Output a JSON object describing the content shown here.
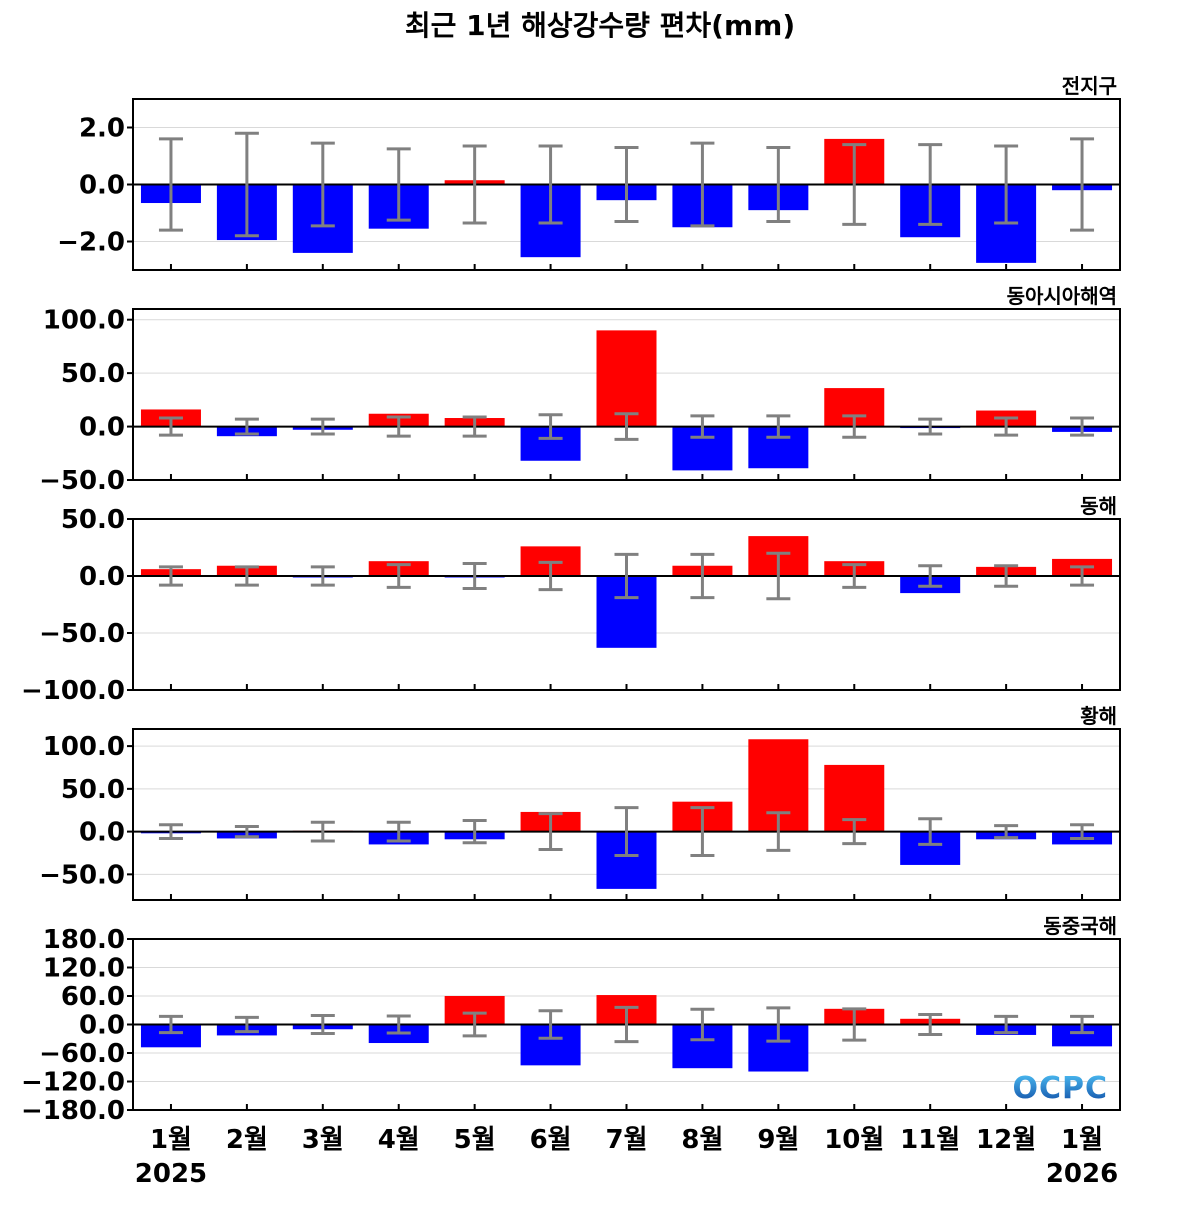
{
  "title": "최근 1년 해상강수량 편차(mm)",
  "colors": {
    "positive": "#ff0000",
    "negative": "#0000ff",
    "errorbar": "#808080",
    "grid": "#d9d9d9",
    "axis": "#000000"
  },
  "logo_text": "OCPC",
  "chart_data": [
    {
      "type": "bar",
      "panel_label": "전지구",
      "categories": [
        "1월",
        "2월",
        "3월",
        "4월",
        "5월",
        "6월",
        "7월",
        "8월",
        "9월",
        "10월",
        "11월",
        "12월",
        "1월"
      ],
      "values": [
        -0.65,
        -1.95,
        -2.4,
        -1.55,
        0.15,
        -2.55,
        -0.55,
        -1.5,
        -0.9,
        1.6,
        -1.85,
        -2.75,
        -0.2
      ],
      "error_half": [
        1.6,
        1.8,
        1.45,
        1.25,
        1.35,
        1.35,
        1.3,
        1.45,
        1.3,
        1.4,
        1.4,
        1.35,
        1.6
      ],
      "ylim": [
        -3.0,
        3.0
      ],
      "yticks": [
        -2.0,
        0.0,
        2.0
      ],
      "ytick_labels": [
        "−2.0",
        "0.0",
        "2.0"
      ],
      "grid": true
    },
    {
      "type": "bar",
      "panel_label": "동아시아해역",
      "categories": [
        "1월",
        "2월",
        "3월",
        "4월",
        "5월",
        "6월",
        "7월",
        "8월",
        "9월",
        "10월",
        "11월",
        "12월",
        "1월"
      ],
      "values": [
        16,
        -9,
        -3,
        12,
        8,
        -32,
        90,
        -41,
        -39,
        36,
        -1,
        15,
        -5
      ],
      "error_half": [
        8,
        7,
        7,
        9,
        9,
        11,
        12,
        10,
        10,
        10,
        7,
        8,
        8
      ],
      "ylim": [
        -50,
        110
      ],
      "yticks": [
        -50,
        0,
        50,
        100
      ],
      "ytick_labels": [
        "−50.0",
        "0.0",
        "50.0",
        "100.0"
      ],
      "grid": true
    },
    {
      "type": "bar",
      "panel_label": "동해",
      "categories": [
        "1월",
        "2월",
        "3월",
        "4월",
        "5월",
        "6월",
        "7월",
        "8월",
        "9월",
        "10월",
        "11월",
        "12월",
        "1월"
      ],
      "values": [
        6,
        9,
        -1,
        13,
        -1,
        26,
        -63,
        9,
        35,
        13,
        -15,
        8,
        15
      ],
      "error_half": [
        8,
        8,
        8,
        10,
        11,
        12,
        19,
        19,
        20,
        10,
        9,
        9,
        8
      ],
      "ylim": [
        -100,
        50
      ],
      "yticks": [
        -100,
        -50,
        0,
        50
      ],
      "ytick_labels": [
        "−100.0",
        "−50.0",
        "0.0",
        "50.0"
      ],
      "grid": true
    },
    {
      "type": "bar",
      "panel_label": "황해",
      "categories": [
        "1월",
        "2월",
        "3월",
        "4월",
        "5월",
        "6월",
        "7월",
        "8월",
        "9월",
        "10월",
        "11월",
        "12월",
        "1월"
      ],
      "values": [
        -2,
        -8,
        1,
        -15,
        -9,
        23,
        -67,
        35,
        108,
        78,
        -39,
        -9,
        -15
      ],
      "error_half": [
        8,
        6,
        11,
        11,
        13,
        21,
        28,
        28,
        22,
        14,
        15,
        7,
        8
      ],
      "ylim": [
        -80,
        120
      ],
      "yticks": [
        -50,
        0,
        50,
        100
      ],
      "ytick_labels": [
        "−50.0",
        "0.0",
        "50.0",
        "100.0"
      ],
      "grid": true
    },
    {
      "type": "bar",
      "panel_label": "동중국해",
      "categories": [
        "1월",
        "2월",
        "3월",
        "4월",
        "5월",
        "6월",
        "7월",
        "8월",
        "9월",
        "10월",
        "11월",
        "12월",
        "1월"
      ],
      "values": [
        -48,
        -23,
        -10,
        -39,
        60,
        -86,
        62,
        -92,
        -99,
        33,
        12,
        -22,
        -46
      ],
      "error_half": [
        17,
        15,
        19,
        18,
        24,
        29,
        36,
        32,
        35,
        33,
        21,
        17,
        17
      ],
      "ylim": [
        -180,
        180
      ],
      "yticks": [
        -180,
        -120,
        -60,
        0,
        60,
        120,
        180
      ],
      "ytick_labels": [
        "−180.0",
        "−120.0",
        "−60.0",
        "0.0",
        "60.0",
        "120.0",
        "180.0"
      ],
      "grid": true
    }
  ],
  "x_tick_labels": [
    "1월",
    "2월",
    "3월",
    "4월",
    "5월",
    "6월",
    "7월",
    "8월",
    "9월",
    "10월",
    "11월",
    "12월",
    "1월"
  ],
  "year_labels": {
    "start": "2025",
    "end": "2026"
  }
}
